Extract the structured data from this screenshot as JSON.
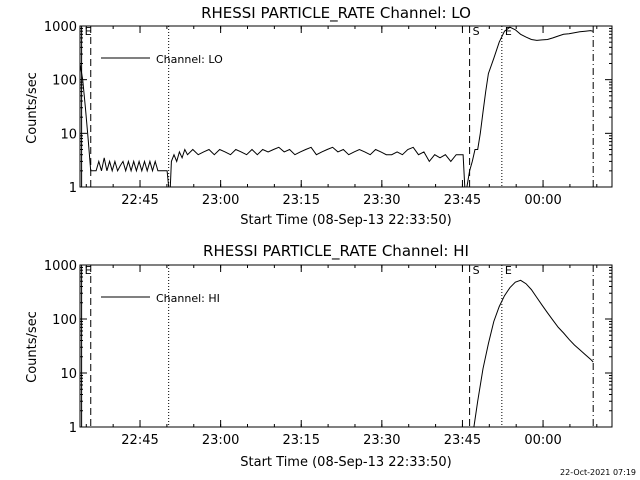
{
  "footer_timestamp": "22-Oct-2021 07:19",
  "colors": {
    "background": "#ffffff",
    "foreground": "#000000"
  },
  "chart_data": [
    {
      "type": "line",
      "title": "RHESSI PARTICLE_RATE Channel: LO",
      "xlabel": "Start Time (08-Sep-13 22:33:50)",
      "ylabel": "Counts/sec",
      "y_scale": "log",
      "ylim": [
        1,
        1000
      ],
      "y_ticks": [
        1,
        10,
        100,
        1000
      ],
      "y_tick_labels": [
        "1",
        "10",
        "100",
        "1000"
      ],
      "xlim_minutes": [
        0,
        99
      ],
      "x_ticks": [
        11.17,
        26.17,
        41.17,
        56.17,
        71.17,
        86.17
      ],
      "x_tick_labels": [
        "22:45",
        "23:00",
        "23:15",
        "23:30",
        "23:45",
        "00:00"
      ],
      "legend": {
        "label": "Channel: LO",
        "placement": "top-left"
      },
      "markers": [
        {
          "label": "E",
          "x": 0.3,
          "style": "solid"
        },
        {
          "label": "",
          "x": 2.0,
          "style": "dashed"
        },
        {
          "label": "",
          "x": 16.5,
          "style": "dotted"
        },
        {
          "label": "S",
          "x": 72.5,
          "style": "dashed"
        },
        {
          "label": "E",
          "x": 78.5,
          "style": "dotted"
        },
        {
          "label": "",
          "x": 95.5,
          "style": "dashdot"
        }
      ],
      "series": [
        {
          "x": [
            0.0,
            0.5,
            1.0,
            1.5,
            2.0,
            2.5,
            3.0,
            3.5,
            4.0,
            4.5,
            5.0,
            5.5,
            6.0,
            6.5,
            7.0,
            7.5,
            8.0,
            8.5,
            9.0,
            9.5,
            10.0,
            10.5,
            11.0,
            11.5,
            12.0,
            12.5,
            13.0,
            13.5,
            14.0,
            14.5,
            15.0,
            15.5,
            16.0,
            16.2,
            16.5,
            16.8,
            17.0,
            17.5,
            18.0,
            18.5,
            19.0,
            19.5,
            20.0,
            21.0,
            22.0,
            23.0,
            24.0,
            25.0,
            26.0,
            27.0,
            28.0,
            29.0,
            30.0,
            31.0,
            32.0,
            33.0,
            34.0,
            35.0,
            36.0,
            37.0,
            38.0,
            39.0,
            40.0,
            41.0,
            42.0,
            43.0,
            44.0,
            45.0,
            46.0,
            47.0,
            48.0,
            49.0,
            50.0,
            51.0,
            52.0,
            53.0,
            54.0,
            55.0,
            56.0,
            57.0,
            58.0,
            59.0,
            60.0,
            61.0,
            62.0,
            63.0,
            64.0,
            65.0,
            66.0,
            67.0,
            68.0,
            69.0,
            70.0,
            71.0,
            71.3,
            71.6,
            72.0,
            72.5,
            73.0,
            73.5,
            74.0,
            74.5,
            75.0,
            75.5,
            76.0,
            77.0,
            78.0,
            79.0,
            80.0,
            81.0,
            82.0,
            83.0,
            84.0,
            85.0,
            86.0,
            87.0,
            88.0,
            89.0,
            90.0,
            91.0,
            92.0,
            93.0,
            94.0,
            95.0,
            95.5
          ],
          "values": [
            200,
            100,
            30,
            8,
            2,
            2,
            2,
            3,
            2,
            3.5,
            2,
            3,
            2,
            3,
            2,
            2.5,
            3,
            2,
            3,
            2,
            3,
            2,
            3,
            2,
            3,
            2,
            3,
            2,
            3,
            2,
            2,
            2,
            2,
            2,
            1,
            1,
            3,
            4,
            3,
            4.5,
            3.5,
            5,
            4,
            5,
            4,
            4.5,
            5,
            4,
            5,
            4.5,
            4,
            5,
            4.5,
            4,
            5,
            4,
            5,
            4.5,
            5,
            5.5,
            4.5,
            5,
            4,
            4.5,
            5,
            5.5,
            4,
            4.5,
            5,
            5.5,
            4.5,
            5,
            4,
            4.5,
            5,
            4.5,
            4,
            5,
            4.5,
            4,
            4,
            4.5,
            4,
            5,
            5.5,
            4,
            4.5,
            3,
            4,
            3.5,
            4,
            3,
            4,
            4,
            4,
            1,
            1,
            2,
            3,
            5,
            5,
            10,
            25,
            60,
            130,
            250,
            500,
            800,
            950,
            850,
            700,
            620,
            560,
            540,
            550,
            560,
            600,
            650,
            700,
            720,
            750,
            780,
            800,
            820,
            800
          ]
        }
      ]
    },
    {
      "type": "line",
      "title": "RHESSI PARTICLE_RATE Channel: HI",
      "xlabel": "Start Time (08-Sep-13 22:33:50)",
      "ylabel": "Counts/sec",
      "y_scale": "log",
      "ylim": [
        1,
        1000
      ],
      "y_ticks": [
        1,
        10,
        100,
        1000
      ],
      "y_tick_labels": [
        "1",
        "10",
        "100",
        "1000"
      ],
      "xlim_minutes": [
        0,
        99
      ],
      "x_ticks": [
        11.17,
        26.17,
        41.17,
        56.17,
        71.17,
        86.17
      ],
      "x_tick_labels": [
        "22:45",
        "23:00",
        "23:15",
        "23:30",
        "23:45",
        "00:00"
      ],
      "legend": {
        "label": "Channel: HI",
        "placement": "top-left"
      },
      "markers": [
        {
          "label": "E",
          "x": 0.3,
          "style": "solid"
        },
        {
          "label": "",
          "x": 2.0,
          "style": "dashed"
        },
        {
          "label": "",
          "x": 16.5,
          "style": "dotted"
        },
        {
          "label": "S",
          "x": 72.5,
          "style": "dashed"
        },
        {
          "label": "E",
          "x": 78.5,
          "style": "dotted"
        },
        {
          "label": "",
          "x": 95.5,
          "style": "dashdot"
        }
      ],
      "series": [
        {
          "x": [
            73.3,
            74.0,
            75.0,
            76.0,
            77.0,
            78.0,
            79.0,
            80.0,
            81.0,
            82.0,
            83.0,
            84.0,
            85.0,
            86.0,
            87.0,
            88.0,
            89.0,
            90.0,
            91.0,
            92.0,
            93.0,
            94.0,
            95.0,
            95.5
          ],
          "values": [
            1,
            3,
            12,
            35,
            90,
            170,
            270,
            380,
            480,
            520,
            450,
            350,
            250,
            180,
            130,
            95,
            70,
            55,
            42,
            33,
            27,
            22,
            18,
            16
          ]
        }
      ]
    }
  ]
}
